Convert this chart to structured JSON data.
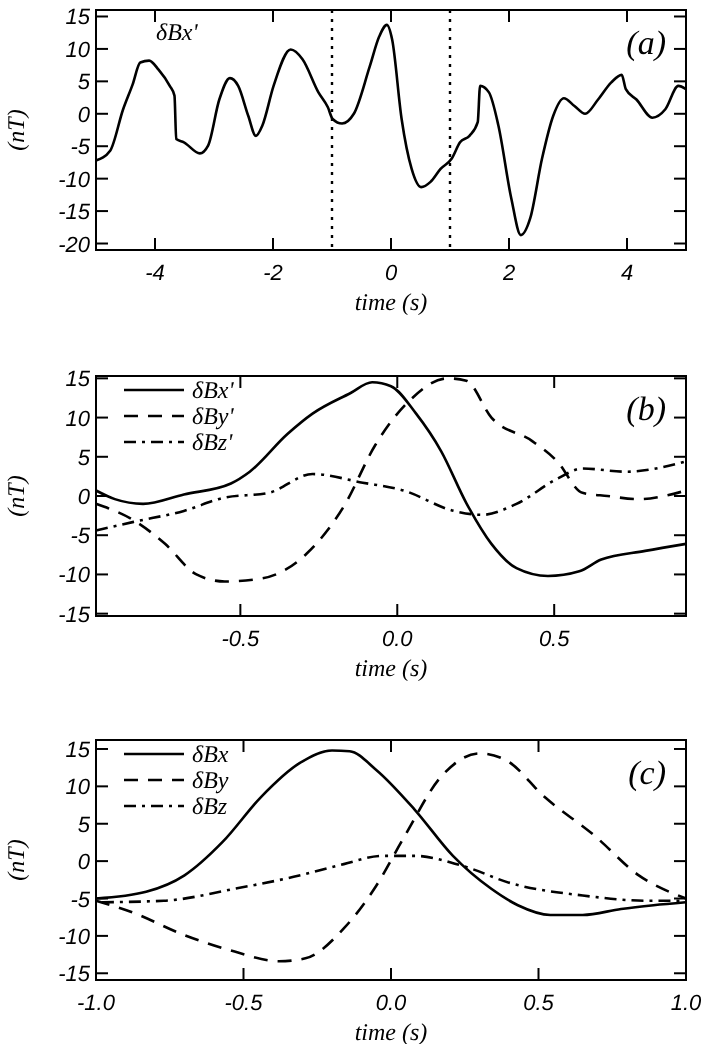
{
  "chart_data": [
    {
      "type": "line",
      "xlabel": "time (s)",
      "ylabel": "(nT)",
      "xlim": [
        -5,
        5
      ],
      "ylim": [
        -21,
        16
      ],
      "xticks": [
        -4,
        -2,
        0,
        2,
        4
      ],
      "yticks": [
        -20,
        -15,
        -10,
        -5,
        0,
        5,
        10,
        15
      ],
      "legend": false,
      "annotations": [
        "δBx'",
        "(a)"
      ],
      "ref_lines": [
        {
          "axis": "x",
          "value": -1,
          "color": "#000000",
          "line_style": "dotted"
        },
        {
          "axis": "x",
          "value": 1,
          "color": "#000000",
          "line_style": "dotted"
        }
      ],
      "series": [
        {
          "color": "#000000",
          "line_style": "solid",
          "x": [
            -5,
            -4.76,
            -4.54,
            -4.38,
            -4.25,
            -4.1,
            -3.94,
            -3.75,
            -3.67,
            -3.64,
            -3.51,
            -3.24,
            -3.1,
            -2.91,
            -2.73,
            -2.59,
            -2.42,
            -2.29,
            -2.18,
            -1.99,
            -1.7,
            -1.5,
            -1.23,
            -1.07,
            -0.99,
            -0.83,
            -0.63,
            -0.36,
            -0.2,
            -0.07,
            0.02,
            0.18,
            0.35,
            0.51,
            0.67,
            0.84,
            1.03,
            1.17,
            1.33,
            1.47,
            1.51,
            1.66,
            1.82,
            2.04,
            2.2,
            2.36,
            2.56,
            2.75,
            2.93,
            3.11,
            3.29,
            3.51,
            3.73,
            3.91,
            3.98,
            4.16,
            4.43,
            4.65,
            4.87,
            5
          ],
          "values": [
            -7.2,
            -5.7,
            0.7,
            4.5,
            7.9,
            8.2,
            6.8,
            4.3,
            2.8,
            -3.9,
            -4.4,
            -6.1,
            -4.9,
            2.2,
            5.5,
            4.3,
            -0.3,
            -3.4,
            -1.8,
            4.3,
            9.9,
            8.4,
            3.3,
            1.0,
            -0.8,
            -1.5,
            0,
            7.3,
            11.9,
            13.7,
            11.4,
            -0.8,
            -8.5,
            -11.3,
            -10.5,
            -8.5,
            -6.9,
            -4.4,
            -3.4,
            -1.3,
            4.3,
            3.3,
            -1.8,
            -13.1,
            -18.7,
            -16.1,
            -6.9,
            -0.3,
            2.4,
            1.2,
            0,
            2.2,
            4.8,
            6.0,
            3.8,
            2.2,
            -0.6,
            0.7,
            4.3,
            3.8
          ]
        }
      ]
    },
    {
      "type": "line",
      "xlabel": "time (s)",
      "ylabel": "(nT)",
      "xlim": [
        -0.96,
        0.92
      ],
      "ylim": [
        -15.3,
        15.3
      ],
      "xticks": [
        -0.5,
        {
          "value": 0,
          "label": "0.0"
        },
        0.5
      ],
      "yticks": [
        -15,
        -10,
        -5,
        0,
        5,
        10,
        15
      ],
      "legend": "top left",
      "annotations": [
        "(b)"
      ],
      "series": [
        {
          "name": "δBx'",
          "color": "#000000",
          "line_style": "solid",
          "x": [
            -0.96,
            -0.9,
            -0.81,
            -0.68,
            -0.53,
            -0.47,
            -0.35,
            -0.27,
            -0.15,
            -0.08,
            -0.02,
            0.06,
            0.14,
            0.22,
            0.3,
            0.38,
            0.48,
            0.58,
            0.65,
            0.79,
            0.92
          ],
          "values": [
            0.7,
            -0.4,
            -1.0,
            0.2,
            1.6,
            3.1,
            7.9,
            10.5,
            13.1,
            14.5,
            14.0,
            10.5,
            5.7,
            -0.9,
            -6.1,
            -9.2,
            -10.2,
            -9.6,
            -8.1,
            -7.0,
            -6.1
          ]
        },
        {
          "name": "δBy'",
          "color": "#000000",
          "line_style": "dashed",
          "x": [
            -0.96,
            -0.84,
            -0.74,
            -0.64,
            -0.55,
            -0.43,
            -0.29,
            -0.17,
            -0.07,
            0.04,
            0.16,
            0.22,
            0.3,
            0.43,
            0.51,
            0.59,
            0.67,
            0.77,
            0.85,
            0.92
          ],
          "values": [
            -1.0,
            -3.1,
            -6.1,
            -10.0,
            -10.9,
            -10.5,
            -7.4,
            -1.3,
            6.5,
            12.2,
            15.0,
            14.7,
            10.0,
            7.0,
            4.4,
            0.4,
            0,
            -0.4,
            0,
            0.7
          ]
        },
        {
          "name": "δBz'",
          "color": "#000000",
          "line_style": "dashdot",
          "x": [
            -0.96,
            -0.84,
            -0.68,
            -0.55,
            -0.41,
            -0.27,
            -0.11,
            0.02,
            0.18,
            0.27,
            0.38,
            0.51,
            0.59,
            0.73,
            0.92
          ],
          "values": [
            -4.4,
            -3.3,
            -1.9,
            -0.2,
            0.4,
            2.8,
            1.7,
            0.7,
            -1.9,
            -2.4,
            -1.0,
            2.2,
            3.5,
            3.1,
            4.4
          ]
        }
      ]
    },
    {
      "type": "line",
      "xlabel": "time (s)",
      "ylabel": "(nT)",
      "xlim": [
        -1,
        1
      ],
      "ylim": [
        -15.9,
        16.2
      ],
      "xticks": [
        {
          "value": -1,
          "label": "-1.0"
        },
        -0.5,
        {
          "value": 0,
          "label": "0.0"
        },
        0.5,
        {
          "value": 1,
          "label": "1.0"
        }
      ],
      "yticks": [
        -15,
        -10,
        -5,
        0,
        5,
        10,
        15
      ],
      "legend": "top left",
      "annotations": [
        "(c)"
      ],
      "series": [
        {
          "name": "δBx",
          "color": "#000000",
          "line_style": "solid",
          "x": [
            -1,
            -0.83,
            -0.7,
            -0.57,
            -0.44,
            -0.31,
            -0.2,
            -0.14,
            -0.05,
            0.08,
            0.21,
            0.34,
            0.43,
            0.54,
            0.65,
            0.78,
            0.89,
            1.0
          ],
          "values": [
            -5.0,
            -4.1,
            -1.9,
            2.6,
            8.6,
            13.1,
            14.8,
            14.7,
            12.2,
            6.9,
            0.7,
            -3.7,
            -5.9,
            -7.2,
            -7.2,
            -6.4,
            -5.9,
            -5.5
          ]
        },
        {
          "name": "δBy",
          "color": "#000000",
          "line_style": "dashed",
          "x": [
            -1,
            -0.88,
            -0.7,
            -0.53,
            -0.38,
            -0.29,
            -0.16,
            -0.05,
            0.04,
            0.17,
            0.3,
            0.39,
            0.52,
            0.69,
            0.84,
            1.0
          ],
          "values": [
            -5.3,
            -6.8,
            -9.9,
            -12.1,
            -13.4,
            -13.0,
            -9.0,
            -3.3,
            2.9,
            11.3,
            14.4,
            13.5,
            8.6,
            3.4,
            -1.9,
            -5.0
          ]
        },
        {
          "name": "δBz",
          "color": "#000000",
          "line_style": "dashdot",
          "x": [
            -0.98,
            -0.77,
            -0.53,
            -0.33,
            -0.16,
            -0.03,
            0.08,
            0.24,
            0.41,
            0.65,
            0.87,
            0.98
          ],
          "values": [
            -5.5,
            -5.3,
            -3.7,
            -2.1,
            -0.4,
            0.7,
            0.7,
            -0.6,
            -3.0,
            -4.6,
            -5.3,
            -5.3
          ]
        }
      ]
    }
  ]
}
